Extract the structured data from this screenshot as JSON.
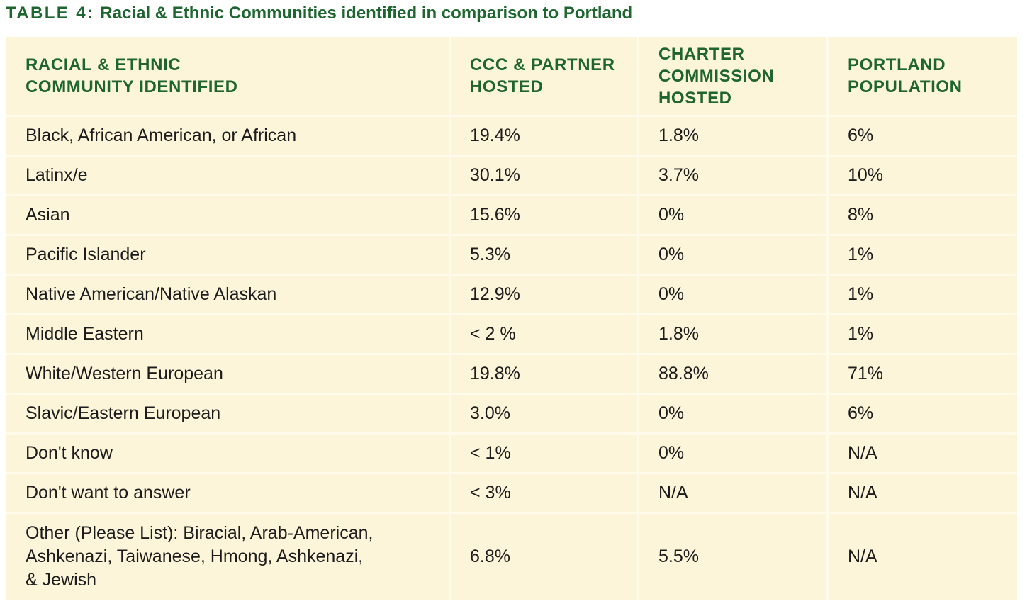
{
  "title": {
    "label": "TABLE 4:",
    "text": "Racial & Ethnic Communities identified in comparison to Portland"
  },
  "columns": [
    "RACIAL & ETHNIC\nCOMMUNITY IDENTIFIED",
    "CCC & PARTNER\nHOSTED",
    "CHARTER\nCOMMISSION\nHOSTED",
    "PORTLAND\nPOPULATION"
  ],
  "rows": [
    [
      "Black, African American, or African",
      "19.4%",
      "1.8%",
      "6%"
    ],
    [
      "Latinx/e",
      "30.1%",
      "3.7%",
      "10%"
    ],
    [
      "Asian",
      "15.6%",
      "0%",
      "8%"
    ],
    [
      "Pacific Islander",
      "5.3%",
      "0%",
      "1%"
    ],
    [
      "Native American/Native Alaskan",
      "12.9%",
      "0%",
      "1%"
    ],
    [
      "Middle Eastern",
      "< 2 %",
      "1.8%",
      "1%"
    ],
    [
      "White/Western European",
      "19.8%",
      "88.8%",
      "71%"
    ],
    [
      "Slavic/Eastern European",
      "3.0%",
      "0%",
      "6%"
    ],
    [
      "Don't know",
      "< 1%",
      "0%",
      "N/A"
    ],
    [
      "Don't want to answer",
      "< 3%",
      "N/A",
      "N/A"
    ],
    [
      "Other (Please List): Biracial, Arab-American,\nAshkenazi, Taiwanese, Hmong, Ashkenazi,\n& Jewish",
      "6.8%",
      "5.5%",
      "N/A"
    ]
  ],
  "colors": {
    "heading_green": "#1e6530",
    "cell_background": "#fdf5d9",
    "grid_line": "#fffbea",
    "body_text": "#1c1c1c"
  }
}
